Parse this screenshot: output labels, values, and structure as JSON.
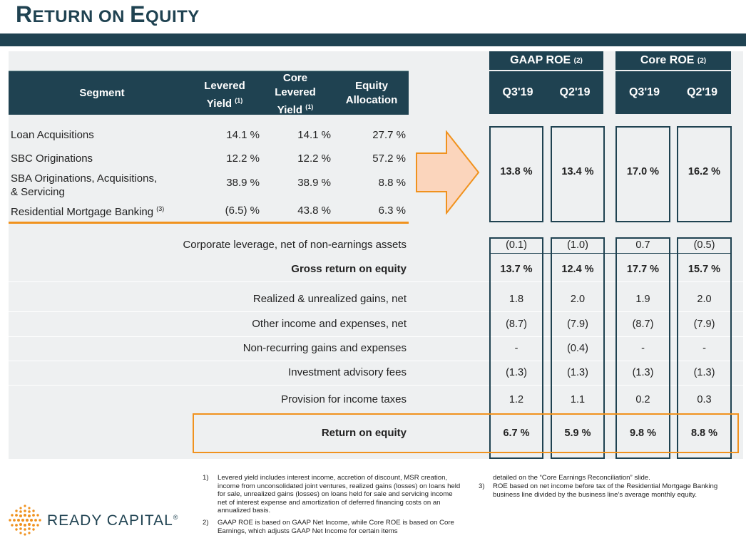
{
  "title": {
    "first_big": "R",
    "first_rest": "ETURN ON ",
    "second_big": "E",
    "second_rest": "QUITY"
  },
  "segment_table": {
    "headers": {
      "segment": "Segment",
      "levered_l1": "Levered",
      "levered_l2": "Yield",
      "levered_sup": "(1)",
      "core_l1": "Core",
      "core_l2": "Levered",
      "core_l3": "Yield",
      "core_sup": "(1)",
      "equity_l1": "Equity",
      "equity_l2": "Allocation"
    },
    "rows": [
      {
        "name": "Loan Acquisitions",
        "name2": "",
        "sup": "",
        "levered": "14.1 %",
        "core": "14.1 %",
        "equity": "27.7 %"
      },
      {
        "name": "SBC Originations",
        "name2": "",
        "sup": "",
        "levered": "12.2 %",
        "core": "12.2 %",
        "equity": "57.2 %"
      },
      {
        "name": "SBA Originations, Acquisitions,",
        "name2": "& Servicing",
        "sup": "",
        "levered": "38.9 %",
        "core": "38.9 %",
        "equity": "8.8 %"
      },
      {
        "name": "Residential Mortgage Banking",
        "name2": "",
        "sup": "(3)",
        "levered": "(6.5) %",
        "core": "43.8 %",
        "equity": "6.3 %"
      }
    ]
  },
  "roe_headers": {
    "gaap": "GAAP ROE",
    "gaap_sup": "(2)",
    "core": "Core ROE",
    "core_sup": "(2)",
    "q3": "Q3'19",
    "q2": "Q2'19"
  },
  "segment_roe": {
    "gaap_q3": "13.8  %",
    "gaap_q2": "13.4  %",
    "core_q3": "17.0  %",
    "core_q2": "16.2  %"
  },
  "bridge_rows": [
    {
      "label": "Corporate leverage, net of non-earnings assets",
      "bold": false,
      "v": [
        "(0.1)",
        "(1.0)",
        "0.7",
        "(0.5)"
      ]
    },
    {
      "label": "Gross return on equity",
      "bold": true,
      "v": [
        "13.7 %",
        "12.4 %",
        "17.7 %",
        "15.7 %"
      ]
    },
    {
      "label": "Realized & unrealized gains, net",
      "bold": false,
      "v": [
        "1.8",
        "2.0",
        "1.9",
        "2.0"
      ]
    },
    {
      "label": "Other income and expenses, net",
      "bold": false,
      "v": [
        "(8.7)",
        "(7.9)",
        "(8.7)",
        "(7.9)"
      ]
    },
    {
      "label": "Non-recurring gains and expenses",
      "bold": false,
      "v": [
        "-",
        "(0.4)",
        "-",
        "-"
      ]
    },
    {
      "label": "Investment advisory fees",
      "bold": false,
      "v": [
        "(1.3)",
        "(1.3)",
        "(1.3)",
        "(1.3)"
      ]
    },
    {
      "label": "Provision for income taxes",
      "bold": false,
      "v": [
        "1.2",
        "1.1",
        "0.2",
        "0.3"
      ]
    },
    {
      "label": "Return on equity",
      "bold": true,
      "v": [
        "6.7 %",
        "5.9 %",
        "9.8 %",
        "8.8 %"
      ]
    }
  ],
  "footnotes": {
    "n1": "1)",
    "t1": "Levered yield includes interest income, accretion of discount, MSR creation, income from unconsolidated joint ventures, realized gains (losses) on loans held for sale, unrealized gains (losses) on loans held for sale and servicing income net of interest expense and amortization of deferred financing costs on an annualized basis.",
    "n2": "2)",
    "t2": "GAAP ROE is based on GAAP Net Income, while Core ROE is based on Core Earnings, which adjusts GAAP Net Income for certain items",
    "t2b": "detailed on  the “Core Earnings Reconciliation” slide.",
    "n3": "3)",
    "t3": "ROE based on net income before tax of the Residential Mortgage Banking business line divided by the business line’s average monthly equity."
  },
  "logo": {
    "text": "READY CAPITAL",
    "mark": "®"
  },
  "colors": {
    "navy": "#1f4251",
    "orange": "#f0921e",
    "peach": "#fbd5bc",
    "grey": "#eef0f1"
  }
}
